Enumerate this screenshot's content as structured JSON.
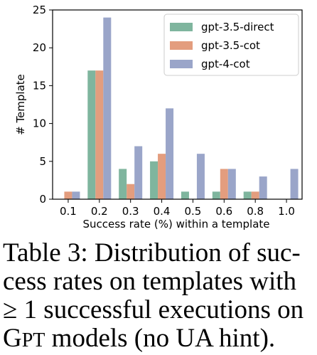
{
  "chart_data": {
    "type": "bar",
    "categories": [
      "0.1",
      "0.2",
      "0.3",
      "0.4",
      "0.5",
      "0.6",
      "0.8",
      "1.0"
    ],
    "series": [
      {
        "name": "gpt-3.5-direct",
        "color": "#7fb59e",
        "values": [
          0,
          17,
          4,
          5,
          1,
          1,
          1,
          0
        ]
      },
      {
        "name": "gpt-3.5-cot",
        "color": "#e39d7e",
        "values": [
          1,
          17,
          2,
          6,
          0,
          4,
          1,
          0
        ]
      },
      {
        "name": "gpt-4-cot",
        "color": "#9aa5c9",
        "values": [
          1,
          24,
          7,
          12,
          6,
          4,
          3,
          4
        ]
      }
    ],
    "xlabel": "Success rate (%) within a template",
    "ylabel": "# Template",
    "ylim": [
      0,
      25
    ],
    "yticks": [
      0,
      5,
      10,
      15,
      20,
      25
    ],
    "grid": false,
    "legend_position": "top-right"
  },
  "caption": {
    "line1": "Table 3: Distribution of suc-",
    "line2": "cess rates on templates with",
    "line3": "≥ 1 successful executions on",
    "line4_sc_first": "G",
    "line4_sc_rest": "PT",
    "line4_rest": " models (no UA hint)."
  }
}
